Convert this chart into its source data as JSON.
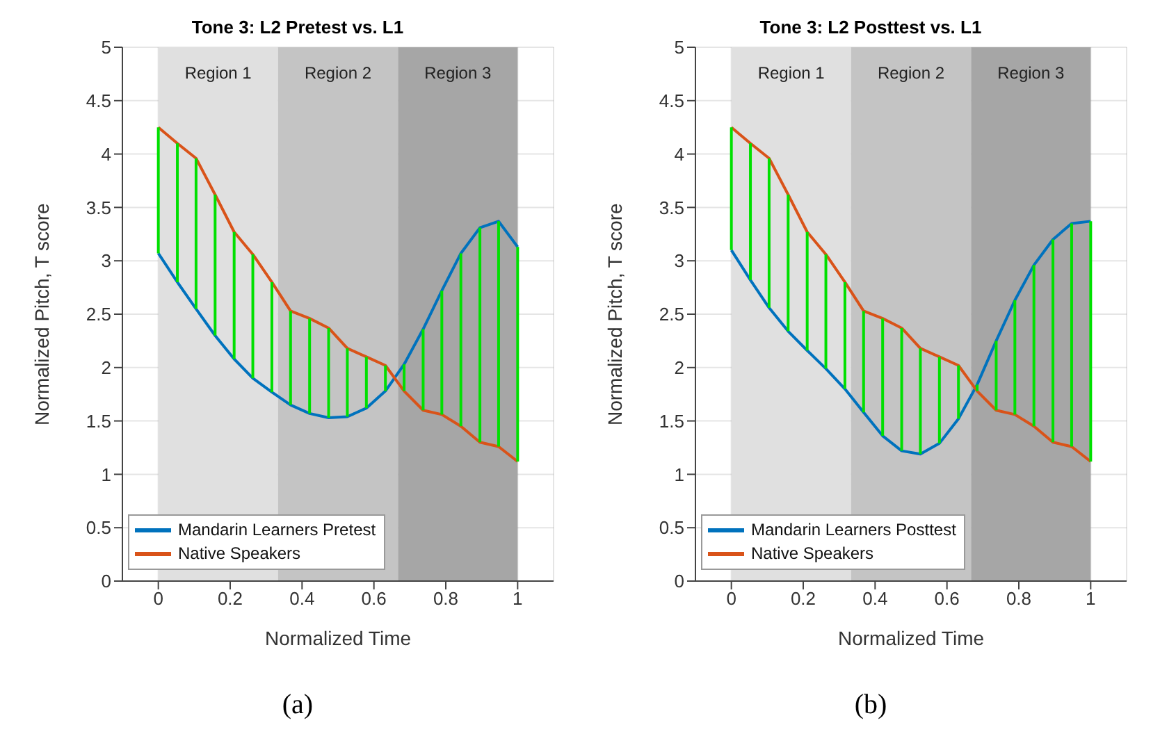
{
  "chart_data": [
    {
      "type": "line",
      "title": "Tone 3: L2 Pretest vs. L1",
      "xlabel": "Normalized Time",
      "ylabel": "Normalized Pitch, T score",
      "annotations": [
        "(a)"
      ],
      "x": [
        0,
        0.053,
        0.105,
        0.158,
        0.211,
        0.263,
        0.316,
        0.368,
        0.421,
        0.474,
        0.526,
        0.579,
        0.632,
        0.684,
        0.737,
        0.789,
        0.842,
        0.895,
        0.947,
        1
      ],
      "series": [
        {
          "name": "Mandarin Learners Pretest",
          "color": "#0072bd",
          "values": [
            3.07,
            2.8,
            2.55,
            2.3,
            2.08,
            1.9,
            1.77,
            1.65,
            1.57,
            1.53,
            1.54,
            1.62,
            1.78,
            2.03,
            2.36,
            2.72,
            3.07,
            3.31,
            3.37,
            3.13
          ],
          "errors": [
            [
              3.07,
              4.25
            ],
            [
              2.8,
              4.1
            ],
            [
              2.55,
              3.96
            ],
            [
              2.3,
              3.62
            ],
            [
              2.08,
              3.27
            ],
            [
              1.9,
              3.06
            ],
            [
              1.77,
              2.8
            ],
            [
              1.65,
              2.53
            ],
            [
              1.57,
              2.46
            ],
            [
              1.53,
              2.37
            ],
            [
              1.54,
              2.18
            ],
            [
              1.62,
              2.1
            ],
            [
              1.78,
              2.02
            ],
            [
              1.78,
              2.03
            ],
            [
              1.6,
              2.36
            ],
            [
              1.56,
              2.72
            ],
            [
              1.45,
              3.07
            ],
            [
              1.3,
              3.31
            ],
            [
              1.26,
              3.37
            ],
            [
              1.12,
              3.13
            ]
          ]
        },
        {
          "name": "Native Speakers",
          "color": "#d95319",
          "values": [
            4.25,
            4.1,
            3.96,
            3.62,
            3.27,
            3.06,
            2.8,
            2.53,
            2.46,
            2.37,
            2.18,
            2.1,
            2.02,
            1.78,
            1.6,
            1.56,
            1.45,
            1.3,
            1.26,
            1.12
          ]
        }
      ],
      "bands": [
        {
          "axis": "x",
          "from": 0,
          "to": 0.333,
          "label": "Region 1",
          "color": "#e0e0e0"
        },
        {
          "axis": "x",
          "from": 0.333,
          "to": 0.667,
          "label": "Region 2",
          "color": "#c4c4c4"
        },
        {
          "axis": "x",
          "from": 0.667,
          "to": 1,
          "label": "Region 3",
          "color": "#a6a6a6"
        }
      ],
      "xlim": [
        -0.1,
        1.1
      ],
      "xticks": [
        0,
        0.2,
        0.4,
        0.6,
        0.8,
        1
      ],
      "ylim": [
        0,
        5
      ],
      "yticks": [
        0,
        0.5,
        1,
        1.5,
        2,
        2.5,
        3,
        3.5,
        4,
        4.5,
        5
      ],
      "grid": true,
      "legend": "bottom left"
    },
    {
      "type": "line",
      "title": "Tone 3: L2 Posttest vs. L1",
      "xlabel": "Normalized Time",
      "ylabel": "Normalized Pitch, T score",
      "annotations": [
        "(b)"
      ],
      "x": [
        0,
        0.053,
        0.105,
        0.158,
        0.211,
        0.263,
        0.316,
        0.368,
        0.421,
        0.474,
        0.526,
        0.579,
        0.632,
        0.684,
        0.737,
        0.789,
        0.842,
        0.895,
        0.947,
        1
      ],
      "series": [
        {
          "name": "Mandarin Learners Posttest",
          "color": "#0072bd",
          "values": [
            3.1,
            2.82,
            2.56,
            2.34,
            2.16,
            1.99,
            1.8,
            1.58,
            1.36,
            1.22,
            1.19,
            1.29,
            1.52,
            1.84,
            2.25,
            2.63,
            2.96,
            3.2,
            3.35,
            3.37
          ],
          "errors": [
            [
              3.1,
              4.25
            ],
            [
              2.82,
              4.1
            ],
            [
              2.56,
              3.96
            ],
            [
              2.34,
              3.62
            ],
            [
              2.16,
              3.27
            ],
            [
              1.99,
              3.06
            ],
            [
              1.8,
              2.8
            ],
            [
              1.58,
              2.53
            ],
            [
              1.36,
              2.46
            ],
            [
              1.22,
              2.37
            ],
            [
              1.19,
              2.18
            ],
            [
              1.29,
              2.1
            ],
            [
              1.52,
              2.02
            ],
            [
              1.78,
              1.84
            ],
            [
              1.6,
              2.25
            ],
            [
              1.56,
              2.63
            ],
            [
              1.45,
              2.96
            ],
            [
              1.3,
              3.2
            ],
            [
              1.26,
              3.35
            ],
            [
              1.12,
              3.37
            ]
          ]
        },
        {
          "name": "Native Speakers",
          "color": "#d95319",
          "values": [
            4.25,
            4.1,
            3.96,
            3.62,
            3.27,
            3.06,
            2.8,
            2.53,
            2.46,
            2.37,
            2.18,
            2.1,
            2.02,
            1.78,
            1.6,
            1.56,
            1.45,
            1.3,
            1.26,
            1.12
          ]
        }
      ],
      "bands": [
        {
          "axis": "x",
          "from": 0,
          "to": 0.333,
          "label": "Region 1",
          "color": "#e0e0e0"
        },
        {
          "axis": "x",
          "from": 0.333,
          "to": 0.667,
          "label": "Region 2",
          "color": "#c4c4c4"
        },
        {
          "axis": "x",
          "from": 0.667,
          "to": 1,
          "label": "Region 3",
          "color": "#a6a6a6"
        }
      ],
      "xlim": [
        -0.1,
        1.1
      ],
      "xticks": [
        0,
        0.2,
        0.4,
        0.6,
        0.8,
        1
      ],
      "ylim": [
        0,
        5
      ],
      "yticks": [
        0,
        0.5,
        1,
        1.5,
        2,
        2.5,
        3,
        3.5,
        4,
        4.5,
        5
      ],
      "grid": true,
      "legend": "bottom left"
    }
  ]
}
